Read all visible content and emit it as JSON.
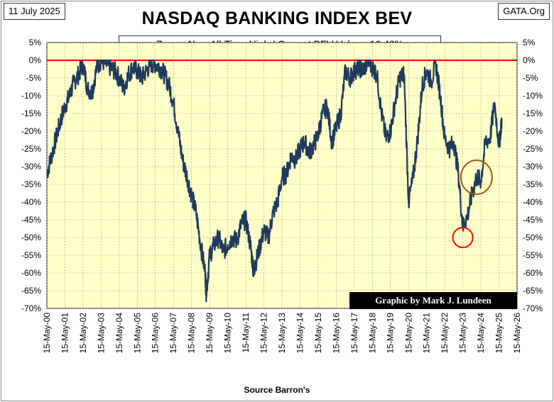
{
  "header": {
    "date": "11 July 2025",
    "site": "GATA.Org",
    "title": "NASDAQ BANKING INDEX BEV",
    "subtitle": "Zero = New All-Time High / Current BEV Value:  -16.48%",
    "credit": "Graphic by Mark J. Lundeen",
    "source": "Source Barron's"
  },
  "colors": {
    "plot_background": "#ffffc8",
    "series_line": "#1f3a5a",
    "zero_line": "#ff0000",
    "circle_low": "#ff0000",
    "circle_consolidation": "#9c5a1e",
    "gridline": "#a0a0a0"
  },
  "chart_data": {
    "type": "line",
    "title": "NASDAQ BANKING INDEX BEV",
    "subtitle": "Zero = New All-Time High / Current BEV Value:  -16.48%",
    "xlabel": "",
    "ylabel": "",
    "y_unit": "%",
    "ylim": [
      -70,
      5
    ],
    "xlim": [
      "2000-05-15",
      "2026-05-15"
    ],
    "y_ticks": [
      5,
      0,
      -5,
      -10,
      -15,
      -20,
      -25,
      -30,
      -35,
      -40,
      -45,
      -50,
      -55,
      -60,
      -65,
      -70
    ],
    "y_tick_labels": [
      "5%",
      "0%",
      "-5%",
      "-10%",
      "-15%",
      "-20%",
      "-25%",
      "-30%",
      "-35%",
      "-40%",
      "-45%",
      "-50%",
      "-55%",
      "-60%",
      "-65%",
      "-70%"
    ],
    "x_tick_labels": [
      "15-May-00",
      "15-May-01",
      "15-May-02",
      "15-May-03",
      "15-May-04",
      "15-May-05",
      "15-May-06",
      "15-May-07",
      "15-May-08",
      "15-May-09",
      "15-May-10",
      "15-May-11",
      "15-May-12",
      "15-May-13",
      "15-May-14",
      "15-May-15",
      "15-May-16",
      "15-May-17",
      "15-May-18",
      "15-May-19",
      "15-May-20",
      "15-May-21",
      "15-May-22",
      "15-May-23",
      "15-May-24",
      "15-May-25",
      "15-May-26"
    ],
    "grid": true,
    "reference_line": {
      "y": 0
    },
    "current_value": -16.48,
    "series": [
      {
        "x": [
          "2000-05-15",
          "2000-08-15",
          "2000-11-15",
          "2001-02-15",
          "2001-05-15",
          "2001-08-15",
          "2001-11-15",
          "2002-02-15",
          "2002-05-15",
          "2002-08-15",
          "2002-11-15",
          "2003-02-15",
          "2003-05-15",
          "2003-08-15",
          "2003-11-15",
          "2004-02-15",
          "2004-05-15",
          "2004-08-15",
          "2004-11-15",
          "2005-02-15",
          "2005-05-15",
          "2005-08-15",
          "2005-11-15",
          "2006-02-15",
          "2006-05-15",
          "2006-08-15",
          "2006-11-15",
          "2007-02-15",
          "2007-05-15",
          "2007-08-15",
          "2007-11-15",
          "2008-02-15",
          "2008-05-15",
          "2008-08-15",
          "2008-11-15",
          "2009-02-15",
          "2009-03-09",
          "2009-05-15",
          "2009-08-15",
          "2009-11-15",
          "2010-02-15",
          "2010-05-15",
          "2010-08-15",
          "2010-11-15",
          "2011-02-15",
          "2011-05-15",
          "2011-08-15",
          "2011-10-15",
          "2011-11-15",
          "2012-02-15",
          "2012-05-15",
          "2012-08-15",
          "2012-11-15",
          "2013-02-15",
          "2013-05-15",
          "2013-08-15",
          "2013-11-15",
          "2014-02-15",
          "2014-05-15",
          "2014-08-15",
          "2014-11-15",
          "2015-02-15",
          "2015-05-15",
          "2015-08-15",
          "2015-11-15",
          "2016-02-15",
          "2016-05-15",
          "2016-08-15",
          "2016-11-15",
          "2017-02-15",
          "2017-05-15",
          "2017-08-15",
          "2017-11-15",
          "2018-02-15",
          "2018-05-15",
          "2018-08-15",
          "2018-11-15",
          "2019-02-15",
          "2019-05-15",
          "2019-08-15",
          "2019-11-15",
          "2020-02-15",
          "2020-05-15",
          "2020-08-15",
          "2020-11-15",
          "2021-02-15",
          "2021-05-15",
          "2021-08-15",
          "2021-11-15",
          "2022-02-15",
          "2022-05-15",
          "2022-08-15",
          "2022-11-15",
          "2023-02-15",
          "2023-05-15",
          "2023-08-15",
          "2023-11-15",
          "2024-02-15",
          "2024-05-15",
          "2024-08-15",
          "2024-11-15",
          "2025-02-15",
          "2025-05-15",
          "2025-07-11"
        ],
        "values": [
          -32,
          -27,
          -22,
          -17,
          -13,
          -10,
          -6,
          -4,
          -1,
          -8,
          -9,
          -2,
          0,
          -1,
          -2,
          -3,
          -5,
          -8,
          -4,
          -2,
          -3,
          -5,
          -3,
          -1,
          -1,
          -2,
          -4,
          -7,
          -12,
          -20,
          -28,
          -33,
          -38,
          -43,
          -52,
          -60,
          -66,
          -55,
          -52,
          -50,
          -54,
          -52,
          -50,
          -51,
          -46,
          -45,
          -52,
          -59,
          -58,
          -53,
          -48,
          -50,
          -43,
          -40,
          -33,
          -32,
          -27,
          -28,
          -25,
          -23,
          -26,
          -24,
          -21,
          -15,
          -13,
          -23,
          -19,
          -15,
          -3,
          -5,
          -3,
          -2,
          -3,
          0,
          -2,
          -4,
          -15,
          -22,
          -20,
          -12,
          -5,
          -4,
          -40,
          -33,
          -22,
          -7,
          -3,
          -6,
          -1,
          -10,
          -22,
          -25,
          -23,
          -32,
          -47,
          -44,
          -38,
          -33,
          -34,
          -23,
          -22,
          -12,
          -24,
          -16.48
        ]
      }
    ],
    "annotations": [
      {
        "type": "circle",
        "x": "2023-05-15",
        "y": -50,
        "color": "#ff0000"
      },
      {
        "type": "circle",
        "x": "2024-02-15",
        "y": -33,
        "color": "#9c5a1e"
      }
    ]
  }
}
